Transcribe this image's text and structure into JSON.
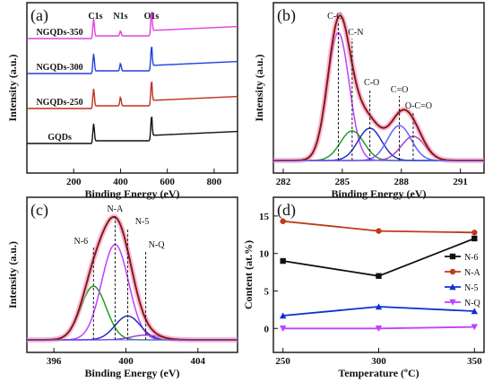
{
  "chart_data": [
    {
      "panel": "(a)",
      "type": "line",
      "xlabel": "Binding Energy (eV)",
      "ylabel": "Intensity (a.u.)",
      "xlim": [
        0,
        900
      ],
      "xticks": [
        "200",
        "400",
        "600",
        "800"
      ],
      "xtick_values": [
        200,
        400,
        600,
        800
      ],
      "peaks": [
        {
          "label": "C1s",
          "x": 285
        },
        {
          "label": "N1s",
          "x": 400
        },
        {
          "label": "O1s",
          "x": 532
        }
      ],
      "series": [
        {
          "name": "NGQDs-350",
          "color": "#e040e0",
          "offset": 3,
          "n_intensity": 0.4
        },
        {
          "name": "NGQDs-300",
          "color": "#2040e0",
          "offset": 2,
          "n_intensity": 0.6
        },
        {
          "name": "NGQDs-250",
          "color": "#c03020",
          "offset": 1,
          "n_intensity": 0.7
        },
        {
          "name": "GQDs",
          "color": "#111111",
          "offset": 0,
          "n_intensity": 0
        }
      ]
    },
    {
      "panel": "(b)",
      "type": "line",
      "xlabel": "Binding Energy (eV)",
      "ylabel": "Intensity (a.u.)",
      "xlim": [
        281.5,
        292.2
      ],
      "xticks": [
        "282",
        "285",
        "288",
        "291"
      ],
      "xtick_values": [
        282,
        285,
        288,
        291
      ],
      "components": [
        {
          "name": "C-C",
          "center": 284.8,
          "height": 0.95,
          "width": 0.55,
          "color": "#c040ff"
        },
        {
          "name": "C-N",
          "center": 285.5,
          "height": 0.22,
          "width": 0.6,
          "color": "#20a020"
        },
        {
          "name": "C-O",
          "center": 286.4,
          "height": 0.24,
          "width": 0.6,
          "color": "#2030c0"
        },
        {
          "name": "C=O",
          "center": 287.9,
          "height": 0.26,
          "width": 0.6,
          "color": "#6060ff"
        },
        {
          "name": "O-C=O",
          "center": 288.6,
          "height": 0.18,
          "width": 0.6,
          "color": "#a040d0"
        }
      ]
    },
    {
      "panel": "(c)",
      "type": "line",
      "xlabel": "Binding Energy (eV)",
      "ylabel": "Intensity (a.u.)",
      "xlim": [
        394.5,
        406.2
      ],
      "xticks": [
        "396",
        "400",
        "404"
      ],
      "xtick_values": [
        396,
        400,
        404
      ],
      "components": [
        {
          "name": "N-6",
          "center": 398.2,
          "height": 0.45,
          "width": 0.7,
          "color": "#20a020"
        },
        {
          "name": "N-A",
          "center": 399.4,
          "height": 0.8,
          "width": 0.75,
          "color": "#c040ff"
        },
        {
          "name": "N-5",
          "center": 400.1,
          "height": 0.2,
          "width": 0.7,
          "color": "#2030c0"
        },
        {
          "name": "N-Q",
          "center": 401.1,
          "height": 0.04,
          "width": 0.8,
          "color": "#a040d0"
        }
      ]
    },
    {
      "panel": "(d)",
      "type": "line",
      "xlabel": "Temperature (ºC)",
      "ylabel": "Content (at.%)",
      "xlim": [
        245,
        355
      ],
      "ylim": [
        -3.2,
        17.5
      ],
      "xticks": [
        "250",
        "300",
        "350"
      ],
      "xtick_values": [
        250,
        300,
        350
      ],
      "yticks": [
        "0",
        "5",
        "10",
        "15"
      ],
      "ytick_values": [
        0,
        5,
        10,
        15
      ],
      "x": [
        250,
        300,
        350
      ],
      "series": [
        {
          "name": "N-6",
          "values": [
            9,
            7,
            12
          ],
          "color": "#111111",
          "marker": "square"
        },
        {
          "name": "N-A",
          "values": [
            14.3,
            13,
            12.8
          ],
          "color": "#c03a1a",
          "marker": "circle"
        },
        {
          "name": "N-5",
          "values": [
            1.7,
            2.9,
            2.3
          ],
          "color": "#1030d0",
          "marker": "triangle-up"
        },
        {
          "name": "N-Q",
          "values": [
            0,
            0,
            0.2
          ],
          "color": "#c040ff",
          "marker": "triangle-down"
        }
      ],
      "legend": "right"
    }
  ]
}
